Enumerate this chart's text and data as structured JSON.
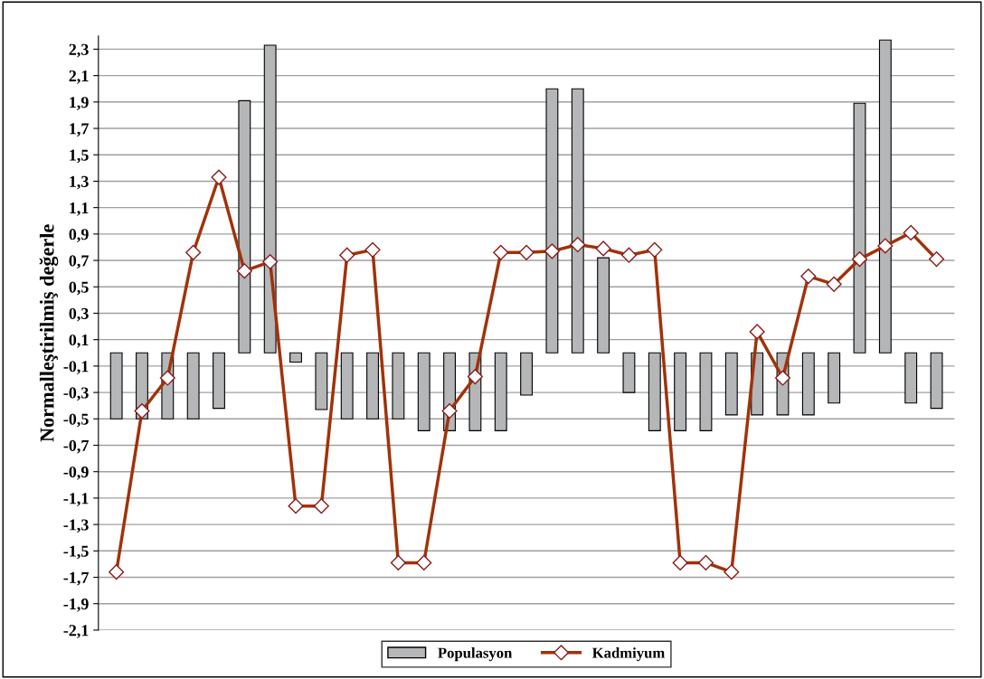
{
  "chart_data": {
    "type": "bar",
    "ylabel": "Normalleştirilmiş değerle",
    "categories": [
      null,
      null,
      null,
      null,
      null,
      null,
      null,
      null,
      null,
      null,
      null,
      null,
      null,
      null,
      null,
      null,
      null,
      null,
      null,
      null,
      null,
      null,
      null,
      null,
      null,
      null,
      null,
      null,
      null,
      null,
      null,
      null,
      null
    ],
    "series": [
      {
        "name": "Populasyon",
        "color": "#b4b6b8",
        "values": [
          -0.5,
          -0.5,
          -0.5,
          -0.5,
          -0.42,
          1.91,
          2.33,
          -0.07,
          -0.43,
          -0.5,
          -0.5,
          -0.5,
          -0.59,
          -0.59,
          -0.59,
          -0.59,
          -0.32,
          2.0,
          2.0,
          0.72,
          -0.3,
          -0.59,
          -0.59,
          -0.59,
          -0.47,
          -0.47,
          -0.47,
          -0.47,
          -0.38,
          1.89,
          2.37,
          -0.38,
          -0.42
        ]
      },
      {
        "name": "Kadmiyum",
        "type": "line",
        "color": "#a0320a",
        "marker": "diamond",
        "values": [
          -1.66,
          -0.44,
          -0.19,
          0.76,
          1.33,
          0.62,
          0.69,
          -1.16,
          -1.16,
          0.74,
          0.78,
          -1.59,
          -1.59,
          -0.44,
          -0.18,
          0.76,
          0.76,
          0.77,
          0.82,
          0.79,
          0.74,
          0.78,
          -1.59,
          -1.59,
          -1.66,
          0.16,
          -0.19,
          0.58,
          0.52,
          0.71,
          0.81,
          0.91,
          0.71
        ]
      }
    ],
    "ylim": [
      -2.1,
      2.4
    ],
    "yticks": [
      {
        "value": -2.1,
        "label": "-2,1"
      },
      {
        "value": -1.9,
        "label": "-1,9"
      },
      {
        "value": -1.7,
        "label": "-1,7"
      },
      {
        "value": -1.5,
        "label": "-1,5"
      },
      {
        "value": -1.3,
        "label": "-1,3"
      },
      {
        "value": -1.1,
        "label": "-1,1"
      },
      {
        "value": -0.9,
        "label": "-0,9"
      },
      {
        "value": -0.7,
        "label": "-0,7"
      },
      {
        "value": -0.5,
        "label": "-0,5"
      },
      {
        "value": -0.3,
        "label": "-0,3"
      },
      {
        "value": -0.1,
        "label": "-0,1"
      },
      {
        "value": 0.1,
        "label": "0,1"
      },
      {
        "value": 0.3,
        "label": "0,3"
      },
      {
        "value": 0.5,
        "label": "0,5"
      },
      {
        "value": 0.7,
        "label": "0,7"
      },
      {
        "value": 0.9,
        "label": "0,9"
      },
      {
        "value": 1.1,
        "label": "1,1"
      },
      {
        "value": 1.3,
        "label": "1,3"
      },
      {
        "value": 1.5,
        "label": "1,5"
      },
      {
        "value": 1.7,
        "label": "1,7"
      },
      {
        "value": 1.9,
        "label": "1,9"
      },
      {
        "value": 2.1,
        "label": "2,1"
      },
      {
        "value": 2.3,
        "label": "2,3"
      }
    ],
    "grid": "y",
    "legend": "bottom",
    "tick_labels": "y"
  }
}
